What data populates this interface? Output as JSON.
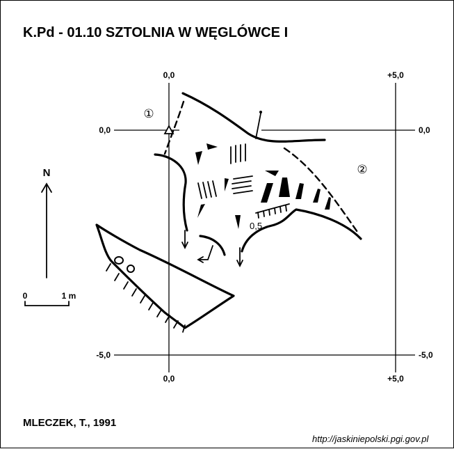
{
  "title": "K.Pd - 01.10  SZTOLNIA W WĘGLÓWCE I",
  "author": "MLECZEK, T., 1991",
  "source_url": "http://jaskiniepolski.pgi.gov.pl",
  "north_label": "N",
  "scale": {
    "start": "0",
    "end": "1 m"
  },
  "axis_labels": {
    "top_left": "0,0",
    "top_right": "+5,0",
    "left_upper": "0,0",
    "right_upper": "0,0",
    "left_lower": "-5,0",
    "right_lower": "-5,0",
    "bottom_left": "0,0",
    "bottom_right": "+5,0"
  },
  "entrance_markers": [
    "①",
    "②"
  ],
  "depth_note": "0,5",
  "colors": {
    "ink": "#000000",
    "background": "#ffffff"
  }
}
